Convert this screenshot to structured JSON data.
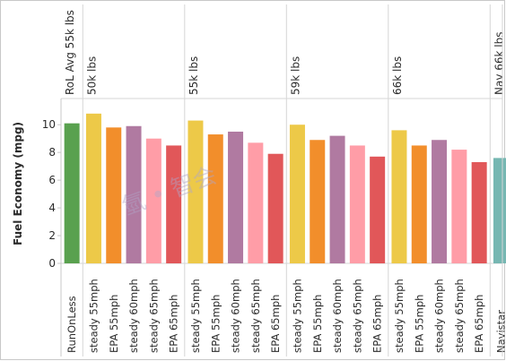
{
  "chart_data": {
    "type": "bar",
    "ylabel": "Fuel Economy (mpg)",
    "yticks": [
      0,
      2,
      4,
      6,
      8,
      10
    ],
    "ylim": [
      0,
      11.5
    ],
    "grid": false,
    "watermark": "氫 • 智会",
    "series_colors": {
      "RunOnLess": "#59a14f",
      "steady 55mph": "#edc948",
      "EPA 55mph": "#f28e2b",
      "steady 60mph": "#b07aa1",
      "steady 65mph": "#ff9da7",
      "EPA 65mph": "#e15759",
      "Navistar": "#76b7b2"
    },
    "panels": [
      {
        "header": "RoL Avg 55k lbs",
        "bars": [
          {
            "category": "RunOnLess",
            "value": 10.1
          }
        ]
      },
      {
        "header": "50k lbs",
        "bars": [
          {
            "category": "steady 55mph",
            "value": 10.8
          },
          {
            "category": "EPA 55mph",
            "value": 9.8
          },
          {
            "category": "steady 60mph",
            "value": 9.9
          },
          {
            "category": "steady 65mph",
            "value": 9.0
          },
          {
            "category": "EPA 65mph",
            "value": 8.5
          }
        ]
      },
      {
        "header": "55k lbs",
        "bars": [
          {
            "category": "steady 55mph",
            "value": 10.3
          },
          {
            "category": "EPA 55mph",
            "value": 9.3
          },
          {
            "category": "steady 60mph",
            "value": 9.5
          },
          {
            "category": "steady 65mph",
            "value": 8.7
          },
          {
            "category": "EPA 65mph",
            "value": 7.9
          }
        ]
      },
      {
        "header": "59k lbs",
        "bars": [
          {
            "category": "steady 55mph",
            "value": 10.0
          },
          {
            "category": "EPA 55mph",
            "value": 8.9
          },
          {
            "category": "steady 60mph",
            "value": 9.2
          },
          {
            "category": "steady 65mph",
            "value": 8.5
          },
          {
            "category": "EPA 65mph",
            "value": 7.7
          }
        ]
      },
      {
        "header": "66k lbs",
        "bars": [
          {
            "category": "steady 55mph",
            "value": 9.6
          },
          {
            "category": "EPA 55mph",
            "value": 8.5
          },
          {
            "category": "steady 60mph",
            "value": 8.9
          },
          {
            "category": "steady 65mph",
            "value": 8.2
          },
          {
            "category": "EPA 65mph",
            "value": 7.3
          }
        ]
      },
      {
        "header": "Nav 66k lbs",
        "bars": [
          {
            "category": "Navistar",
            "value": 7.6
          }
        ]
      }
    ]
  }
}
